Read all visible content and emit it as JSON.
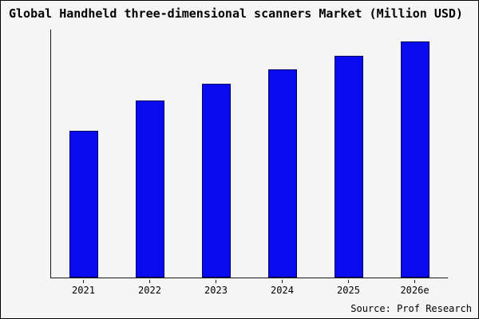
{
  "chart_data": {
    "type": "bar",
    "title": "Global Handheld three-dimensional scanners Market (Million USD)",
    "categories": [
      "2021",
      "2022",
      "2023",
      "2024",
      "2025",
      "2026e"
    ],
    "values": [
      62,
      75,
      82,
      88,
      94,
      100
    ],
    "xlabel": "",
    "ylabel": "",
    "ylim": [
      0,
      105
    ],
    "grid": false,
    "legend": "none",
    "source": "Source: Prof Research",
    "colors": {
      "bar_fill": "#0a0aee",
      "bar_edge": "#000060",
      "background": "#f5f5f5",
      "frame": "#000000"
    }
  }
}
